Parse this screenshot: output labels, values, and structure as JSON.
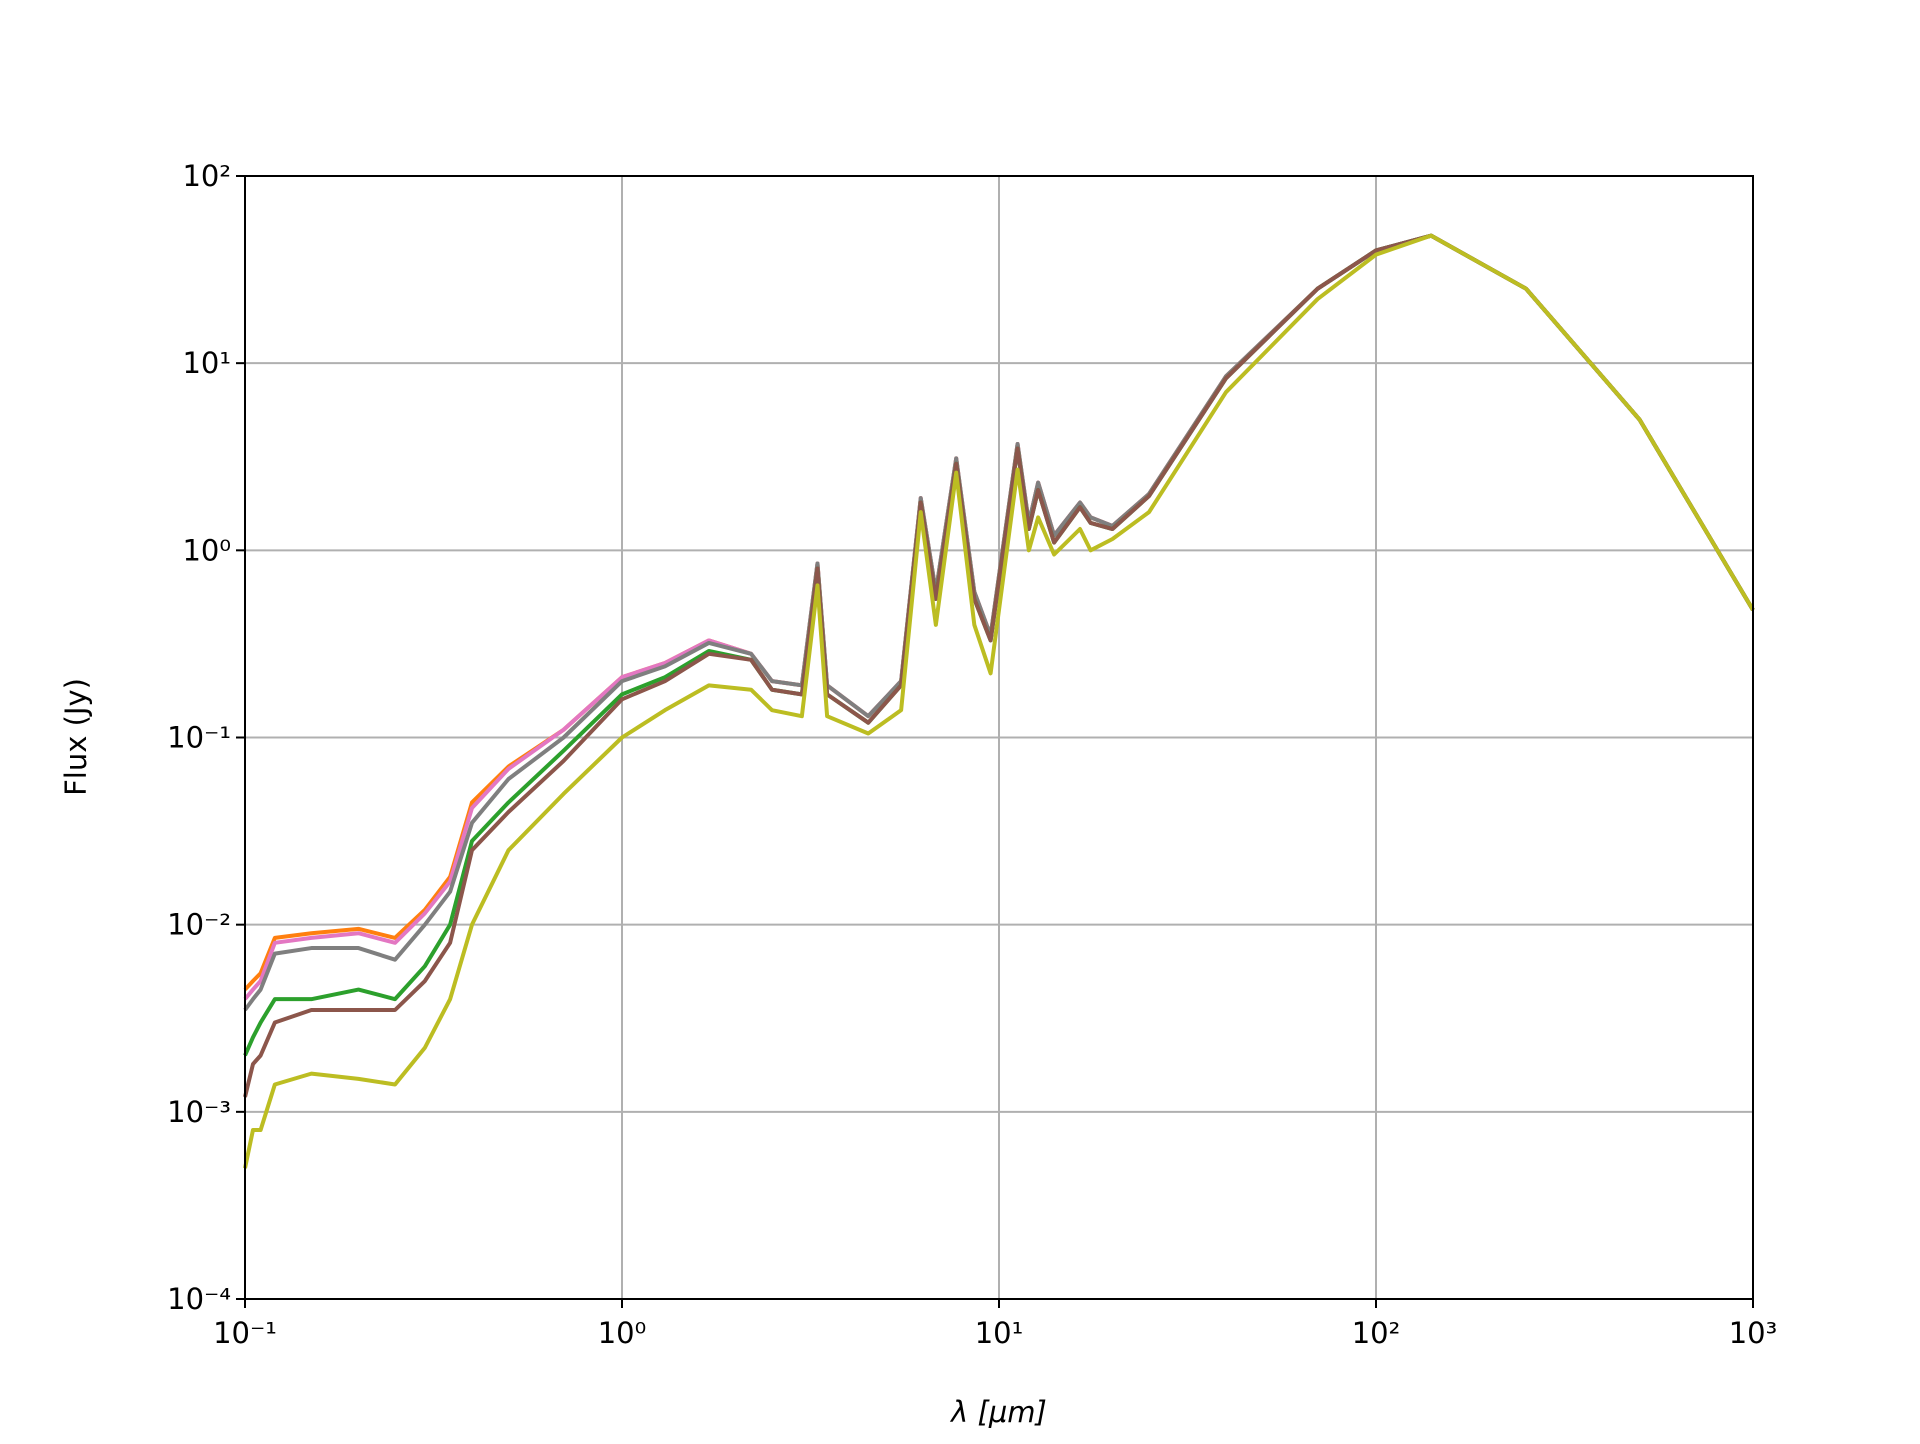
{
  "chart_data": {
    "type": "line",
    "xlabel": "λ [μm]",
    "ylabel": "Flux (Jy)",
    "xscale": "log",
    "yscale": "log",
    "grid": true,
    "xlim": [
      0.1,
      1000
    ],
    "ylim": [
      0.0001,
      100
    ],
    "xticks": [
      {
        "value": 0.1,
        "label": "10⁻¹"
      },
      {
        "value": 1,
        "label": "10⁰"
      },
      {
        "value": 10,
        "label": "10¹"
      },
      {
        "value": 100,
        "label": "10²"
      },
      {
        "value": 1000,
        "label": "10³"
      }
    ],
    "yticks": [
      {
        "value": 0.0001,
        "label": "10⁻⁴"
      },
      {
        "value": 0.001,
        "label": "10⁻³"
      },
      {
        "value": 0.01,
        "label": "10⁻²"
      },
      {
        "value": 0.1,
        "label": "10⁻¹"
      },
      {
        "value": 1,
        "label": "10⁰"
      },
      {
        "value": 10,
        "label": "10¹"
      },
      {
        "value": 100,
        "label": "10²"
      }
    ],
    "x": [
      0.1,
      0.105,
      0.11,
      0.12,
      0.15,
      0.2,
      0.25,
      0.3,
      0.35,
      0.4,
      0.5,
      0.7,
      1.0,
      1.3,
      1.7,
      2.2,
      2.5,
      3.0,
      3.3,
      3.5,
      4.5,
      5.5,
      6.2,
      6.8,
      7.7,
      8.6,
      9.5,
      11.2,
      12.0,
      12.7,
      14,
      16.4,
      17.5,
      20,
      25,
      40,
      70,
      100,
      140,
      250,
      500,
      1000
    ],
    "series": [
      {
        "color": "#ff7f0e",
        "values": [
          0.0045,
          0.005,
          0.0055,
          0.0085,
          0.009,
          0.0095,
          0.0085,
          0.012,
          0.018,
          0.045,
          0.07,
          0.11,
          0.21,
          0.25,
          0.33,
          0.28,
          0.2,
          0.19,
          0.85,
          0.19,
          0.13,
          0.2,
          1.9,
          0.6,
          3.1,
          0.6,
          0.35,
          3.7,
          1.4,
          2.3,
          1.2,
          1.8,
          1.5,
          1.35,
          2.0,
          8.5,
          25,
          40,
          48,
          25,
          5,
          0.48
        ]
      },
      {
        "color": "#e377c2",
        "values": [
          0.004,
          0.0045,
          0.005,
          0.008,
          0.0085,
          0.009,
          0.008,
          0.0115,
          0.017,
          0.042,
          0.068,
          0.11,
          0.21,
          0.25,
          0.33,
          0.28,
          0.2,
          0.19,
          0.85,
          0.19,
          0.13,
          0.2,
          1.9,
          0.6,
          3.1,
          0.6,
          0.35,
          3.7,
          1.4,
          2.3,
          1.2,
          1.8,
          1.5,
          1.35,
          2.0,
          8.5,
          25,
          40,
          48,
          25,
          5,
          0.48
        ]
      },
      {
        "color": "#7f7f7f",
        "values": [
          0.0035,
          0.004,
          0.0045,
          0.007,
          0.0075,
          0.0075,
          0.0065,
          0.01,
          0.015,
          0.035,
          0.06,
          0.1,
          0.2,
          0.24,
          0.32,
          0.28,
          0.2,
          0.19,
          0.85,
          0.19,
          0.13,
          0.2,
          1.9,
          0.6,
          3.1,
          0.6,
          0.35,
          3.7,
          1.4,
          2.3,
          1.2,
          1.8,
          1.5,
          1.35,
          2.0,
          8.5,
          25,
          40,
          48,
          25,
          5,
          0.48
        ]
      },
      {
        "color": "#2ca02c",
        "values": [
          0.002,
          0.0025,
          0.003,
          0.004,
          0.004,
          0.0045,
          0.004,
          0.006,
          0.01,
          0.028,
          0.045,
          0.085,
          0.17,
          0.21,
          0.29,
          0.26,
          0.18,
          0.17,
          0.8,
          0.17,
          0.12,
          0.19,
          1.8,
          0.55,
          2.9,
          0.55,
          0.33,
          3.5,
          1.3,
          2.1,
          1.1,
          1.7,
          1.4,
          1.3,
          1.95,
          8.3,
          25,
          40,
          48,
          25,
          5,
          0.48
        ]
      },
      {
        "color": "#8c564b",
        "values": [
          0.0012,
          0.0018,
          0.002,
          0.003,
          0.0035,
          0.0035,
          0.0035,
          0.005,
          0.008,
          0.025,
          0.04,
          0.075,
          0.16,
          0.2,
          0.28,
          0.26,
          0.18,
          0.17,
          0.8,
          0.17,
          0.12,
          0.19,
          1.8,
          0.55,
          2.9,
          0.55,
          0.33,
          3.5,
          1.3,
          2.1,
          1.1,
          1.7,
          1.4,
          1.3,
          1.95,
          8.3,
          25,
          40,
          48,
          25,
          5,
          0.48
        ]
      },
      {
        "color": "#bcbd22",
        "values": [
          0.0005,
          0.0008,
          0.0008,
          0.0014,
          0.0016,
          0.0015,
          0.0014,
          0.0022,
          0.004,
          0.01,
          0.025,
          0.05,
          0.1,
          0.14,
          0.19,
          0.18,
          0.14,
          0.13,
          0.65,
          0.13,
          0.105,
          0.14,
          1.6,
          0.4,
          2.6,
          0.4,
          0.22,
          2.7,
          1.0,
          1.5,
          0.95,
          1.3,
          1.0,
          1.15,
          1.6,
          7,
          22,
          38,
          48,
          25,
          5,
          0.48
        ]
      }
    ]
  }
}
